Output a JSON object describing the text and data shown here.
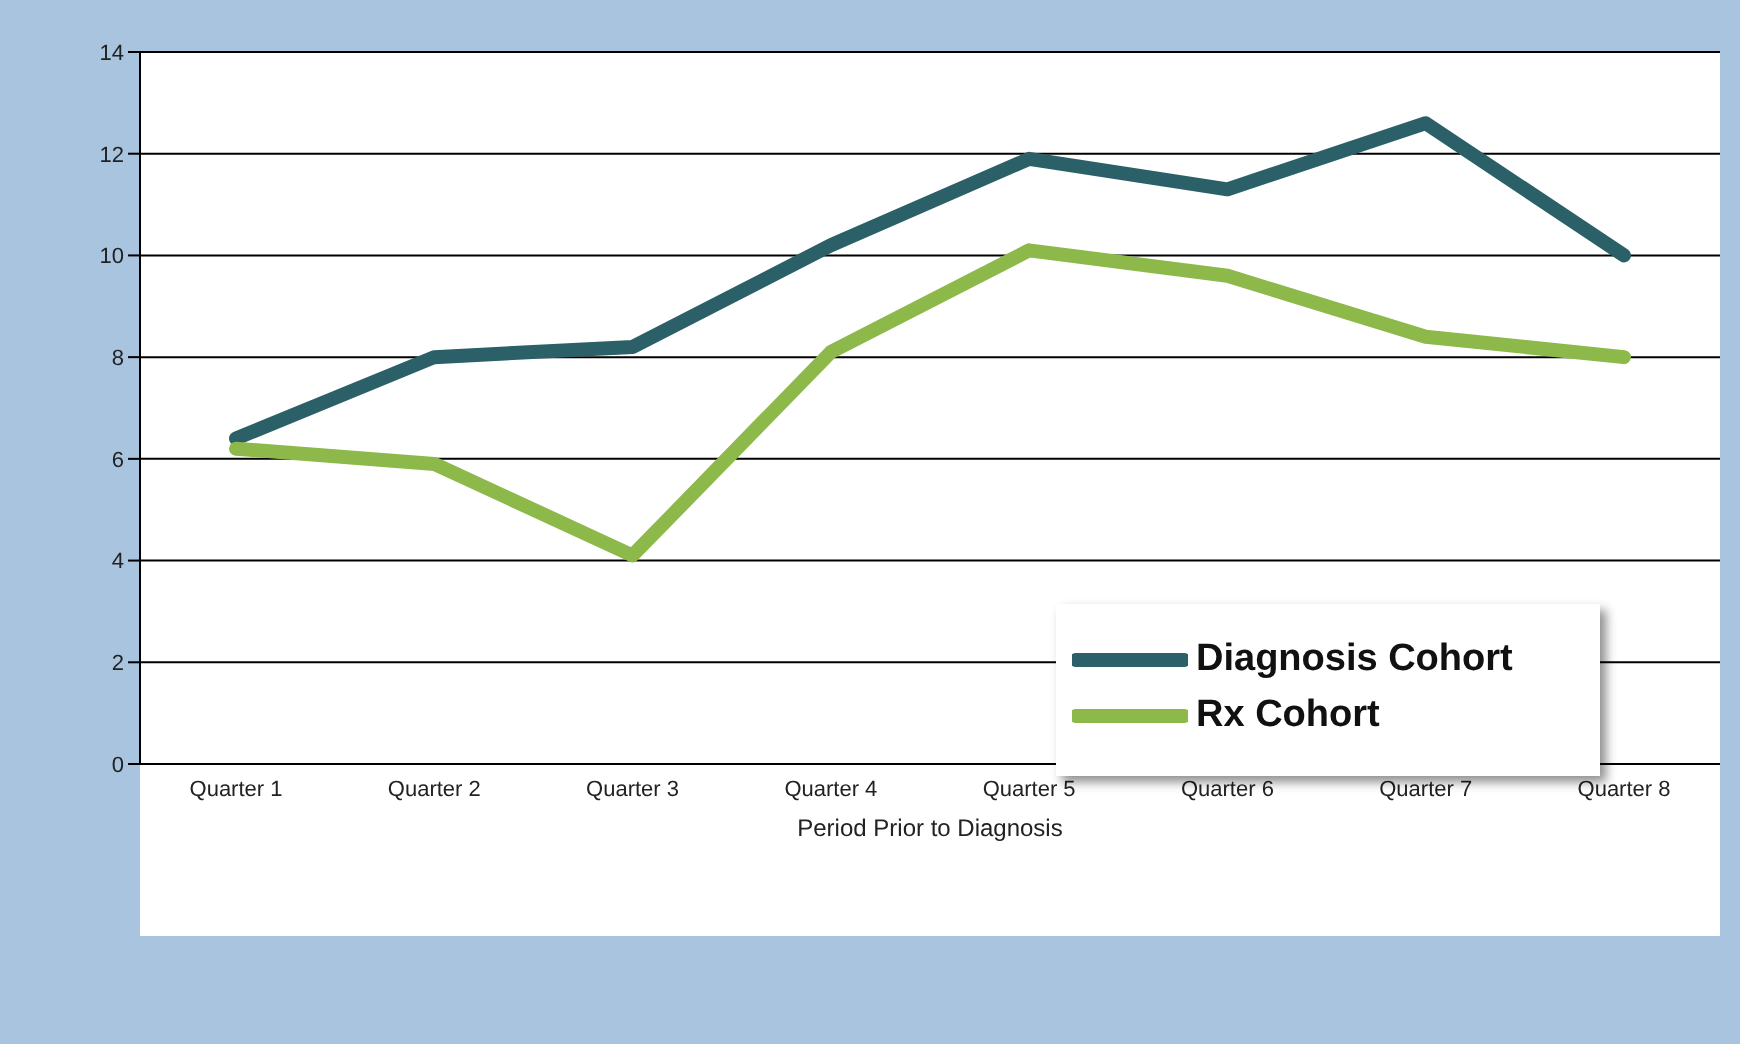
{
  "chart_data": {
    "type": "line",
    "xlabel": "Period Prior to Diagnosis",
    "categories": [
      "Quarter 1",
      "Quarter 2",
      "Quarter 3",
      "Quarter 4",
      "Quarter 5",
      "Quarter 6",
      "Quarter 7",
      "Quarter 8"
    ],
    "series": [
      {
        "name": "Diagnosis Cohort",
        "color": "#2b6068",
        "values": [
          6.4,
          8.0,
          8.2,
          10.2,
          11.9,
          11.3,
          12.6,
          10.0
        ]
      },
      {
        "name": "Rx Cohort",
        "color": "#8db84a",
        "values": [
          6.2,
          5.9,
          4.1,
          8.1,
          10.1,
          9.6,
          8.4,
          8.0
        ]
      }
    ],
    "ylim": [
      0,
      14
    ],
    "yticks": [
      0,
      2,
      4,
      6,
      8,
      10,
      12,
      14
    ],
    "grid": "y",
    "legend": "right",
    "marker": "none",
    "line_style": "solid"
  }
}
